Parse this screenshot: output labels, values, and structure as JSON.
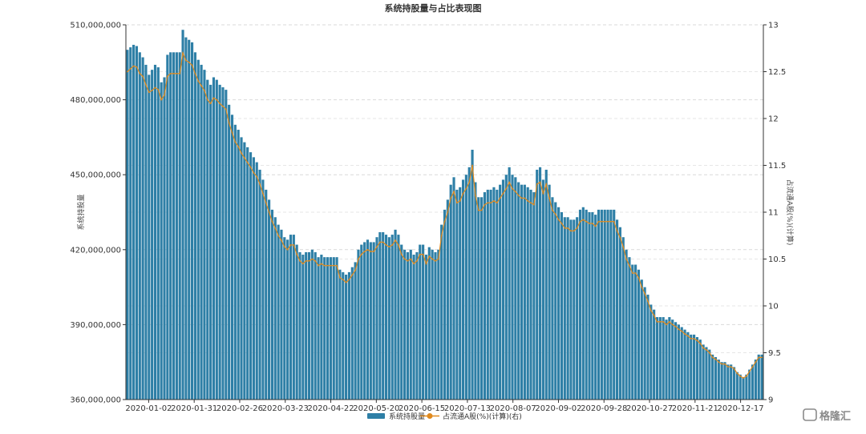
{
  "chart_data": {
    "type": "bar",
    "title": "系统持股量与占比表现图",
    "ylabel": "系统持股量",
    "y2label": "占流通A股(%)(计算)",
    "ylim": [
      360000000,
      510000000
    ],
    "y2lim": [
      9,
      13
    ],
    "yticks": [
      "360,000,000",
      "390,000,000",
      "420,000,000",
      "450,000,000",
      "480,000,000",
      "510,000,000"
    ],
    "y2ticks": [
      "9",
      "9.5",
      "10",
      "10.5",
      "11",
      "11.5",
      "12",
      "12.5",
      "13"
    ],
    "xticks": [
      "2020-01-02",
      "2020-01-31",
      "2020-02-26",
      "2020-03-23",
      "2020-04-22",
      "2020-05-20",
      "2020-06-15",
      "2020-07-13",
      "2020-08-07",
      "2020-09-02",
      "2020-09-28",
      "2020-10-27",
      "2020-11-21",
      "2020-12-17"
    ],
    "grid": true,
    "legend_position": "bottom",
    "series": [
      {
        "name": "系统持股量",
        "kind": "bar",
        "axis": "left",
        "color": "#2e7fa6",
        "values": [
          500000000,
          501000000,
          502000000,
          501500000,
          499000000,
          497000000,
          494000000,
          490000000,
          492000000,
          494000000,
          493000000,
          487000000,
          489000000,
          498000000,
          499000000,
          499000000,
          499000000,
          499000000,
          508000000,
          505000000,
          504000000,
          503000000,
          499000000,
          496000000,
          494000000,
          492000000,
          488000000,
          486000000,
          489000000,
          488000000,
          486000000,
          485000000,
          484000000,
          478000000,
          474000000,
          470000000,
          468000000,
          465000000,
          463000000,
          461000000,
          459000000,
          457000000,
          455000000,
          452000000,
          448000000,
          444000000,
          440000000,
          436000000,
          433000000,
          430000000,
          428000000,
          425000000,
          424000000,
          426000000,
          426000000,
          422000000,
          419000000,
          418000000,
          419000000,
          419000000,
          420000000,
          419000000,
          417000000,
          418000000,
          417000000,
          417000000,
          417000000,
          417000000,
          417000000,
          412000000,
          411000000,
          410000000,
          411000000,
          413000000,
          415000000,
          420000000,
          422000000,
          423000000,
          424000000,
          423000000,
          423000000,
          425000000,
          427000000,
          427000000,
          426000000,
          425000000,
          426000000,
          428000000,
          426000000,
          422000000,
          420000000,
          419000000,
          420000000,
          418000000,
          419000000,
          422000000,
          422000000,
          418000000,
          421000000,
          420000000,
          419000000,
          420000000,
          430000000,
          436000000,
          440000000,
          446000000,
          449000000,
          444000000,
          445000000,
          448000000,
          450000000,
          453000000,
          460000000,
          447000000,
          441000000,
          441000000,
          443000000,
          444000000,
          444000000,
          445000000,
          444000000,
          446000000,
          448000000,
          450000000,
          453000000,
          450000000,
          449000000,
          447000000,
          446000000,
          446000000,
          445000000,
          444000000,
          443000000,
          452000000,
          453000000,
          448000000,
          452000000,
          446000000,
          441000000,
          439000000,
          437000000,
          435000000,
          433000000,
          433000000,
          432000000,
          432000000,
          433000000,
          436000000,
          437000000,
          436000000,
          435000000,
          435000000,
          434000000,
          436000000,
          436000000,
          436000000,
          436000000,
          436000000,
          436000000,
          432000000,
          429000000,
          425000000,
          420000000,
          417000000,
          414000000,
          414000000,
          412000000,
          408000000,
          405000000,
          402000000,
          398000000,
          396000000,
          393000000,
          393000000,
          393000000,
          392000000,
          393000000,
          392000000,
          391000000,
          390000000,
          389000000,
          388000000,
          387000000,
          386000000,
          386000000,
          385000000,
          384000000,
          382000000,
          381000000,
          380000000,
          378000000,
          377000000,
          376000000,
          375000000,
          375000000,
          374000000,
          374000000,
          373000000,
          371000000,
          370000000,
          369000000,
          370000000,
          372000000,
          374000000,
          376000000,
          378000000,
          378000000
        ]
      },
      {
        "name": "占流通A股(%)(计算)(右)",
        "kind": "line",
        "axis": "right",
        "color": "#e08a1e",
        "values": [
          12.5,
          12.53,
          12.56,
          12.55,
          12.48,
          12.45,
          12.36,
          12.28,
          12.3,
          12.33,
          12.31,
          12.2,
          12.25,
          12.45,
          12.48,
          12.48,
          12.48,
          12.48,
          12.7,
          12.62,
          12.6,
          12.57,
          12.48,
          12.4,
          12.35,
          12.3,
          12.2,
          12.16,
          12.22,
          12.2,
          12.16,
          12.13,
          12.1,
          11.95,
          11.85,
          11.75,
          11.7,
          11.63,
          11.58,
          11.53,
          11.48,
          11.42,
          11.38,
          11.3,
          11.2,
          11.1,
          11.0,
          10.9,
          10.83,
          10.75,
          10.7,
          10.63,
          10.6,
          10.65,
          10.65,
          10.55,
          10.48,
          10.45,
          10.48,
          10.48,
          10.5,
          10.48,
          10.43,
          10.45,
          10.43,
          10.43,
          10.43,
          10.43,
          10.43,
          10.3,
          10.28,
          10.25,
          10.28,
          10.33,
          10.38,
          10.5,
          10.55,
          10.58,
          10.6,
          10.58,
          10.58,
          10.63,
          10.68,
          10.68,
          10.65,
          10.63,
          10.65,
          10.7,
          10.65,
          10.55,
          10.5,
          10.48,
          10.5,
          10.45,
          10.48,
          10.55,
          10.55,
          10.45,
          10.53,
          10.5,
          10.48,
          10.5,
          10.75,
          10.9,
          11.0,
          11.15,
          11.22,
          11.1,
          11.12,
          11.2,
          11.25,
          11.32,
          11.5,
          11.18,
          11.02,
          11.02,
          11.08,
          11.1,
          11.1,
          11.12,
          11.1,
          11.15,
          11.2,
          11.25,
          11.32,
          11.25,
          11.22,
          11.18,
          11.15,
          11.15,
          11.12,
          11.1,
          11.08,
          11.3,
          11.32,
          11.2,
          11.3,
          11.15,
          11.02,
          10.98,
          10.92,
          10.88,
          10.83,
          10.83,
          10.8,
          10.8,
          10.83,
          10.9,
          10.92,
          10.9,
          10.88,
          10.88,
          10.85,
          10.9,
          10.9,
          10.9,
          10.9,
          10.9,
          10.9,
          10.8,
          10.73,
          10.63,
          10.5,
          10.43,
          10.35,
          10.35,
          10.3,
          10.2,
          10.13,
          10.05,
          9.95,
          9.9,
          9.83,
          9.83,
          9.83,
          9.8,
          9.83,
          9.8,
          9.78,
          9.75,
          9.73,
          9.7,
          9.68,
          9.65,
          9.65,
          9.63,
          9.6,
          9.55,
          9.53,
          9.5,
          9.45,
          9.43,
          9.4,
          9.38,
          9.38,
          9.35,
          9.35,
          9.33,
          9.28,
          9.25,
          9.23,
          9.25,
          9.3,
          9.35,
          9.4,
          9.45,
          9.45
        ]
      }
    ]
  },
  "watermark": "格隆汇"
}
